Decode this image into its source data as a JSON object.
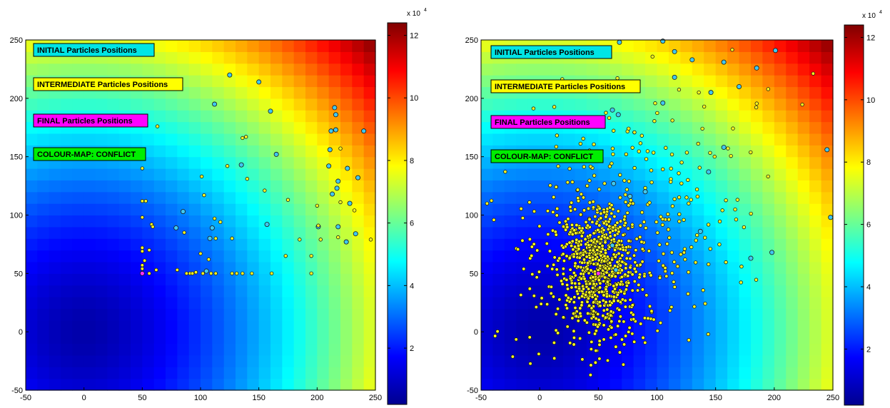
{
  "chart_data": [
    {
      "type": "scatter",
      "background": "heatmap",
      "xlim": [
        -50,
        250
      ],
      "ylim": [
        -50,
        250
      ],
      "xticks": [
        "-50",
        "0",
        "50",
        "100",
        "150",
        "200",
        "250"
      ],
      "yticks": [
        "-50",
        "0",
        "50",
        "100",
        "150",
        "200",
        "250"
      ],
      "legend_boxes": [
        {
          "text": "INITIAL Particles Positions",
          "bg": "#00e5e5"
        },
        {
          "text": "INTERMEDIATE Particles Positions",
          "bg": "#ffff00"
        },
        {
          "text": "FINAL Particles Positions",
          "bg": "#ff00ff"
        },
        {
          "text": "COLOUR-MAP: CONFLICT",
          "bg": "#00ee00"
        }
      ],
      "colorbar": {
        "multiplier": "x 10",
        "exponent": "4",
        "ticks": [
          "2",
          "4",
          "6",
          "8",
          "10",
          "12"
        ],
        "range": [
          0.2,
          12.4
        ]
      },
      "series": [
        {
          "role": "initial",
          "color": "#3fc7ef",
          "points": [
            [
              125,
              220
            ],
            [
              150,
              214
            ],
            [
              112,
              195
            ],
            [
              160,
              189
            ],
            [
              215,
              192
            ],
            [
              216,
              186
            ],
            [
              212,
              172
            ],
            [
              216,
              173
            ],
            [
              240,
              172
            ],
            [
              211,
              156
            ],
            [
              210,
              142
            ],
            [
              226,
              140
            ],
            [
              165,
              152
            ],
            [
              135,
              143
            ],
            [
              235,
              132
            ],
            [
              218,
              129
            ],
            [
              217,
              123
            ],
            [
              213,
              118
            ],
            [
              228,
              110
            ],
            [
              85,
              103
            ],
            [
              157,
              92
            ],
            [
              110,
              89
            ],
            [
              79,
              89
            ],
            [
              201,
              90
            ],
            [
              233,
              84
            ],
            [
              218,
              90
            ],
            [
              225,
              77
            ],
            [
              108,
              80
            ],
            [
              105,
              52
            ]
          ]
        },
        {
          "role": "intermediate",
          "color": "#ffff20",
          "points": [
            [
              139,
              167
            ],
            [
              136,
              166
            ],
            [
              220,
              157
            ],
            [
              123,
              142
            ],
            [
              63,
              176
            ],
            [
              140,
              131
            ],
            [
              50,
              140
            ],
            [
              101,
              133
            ],
            [
              103,
              117
            ],
            [
              155,
              121
            ],
            [
              175,
              113
            ],
            [
              50,
              112
            ],
            [
              53,
              112
            ],
            [
              220,
              111
            ],
            [
              200,
              108
            ],
            [
              232,
              104
            ],
            [
              112,
              97
            ],
            [
              117,
              94
            ],
            [
              50,
              98
            ],
            [
              58,
              92
            ],
            [
              59,
              90
            ],
            [
              201,
              91
            ],
            [
              86,
              85
            ],
            [
              113,
              80
            ],
            [
              127,
              80
            ],
            [
              218,
              81
            ],
            [
              246,
              79
            ],
            [
              185,
              79
            ],
            [
              203,
              79
            ],
            [
              56,
              70
            ],
            [
              50,
              72
            ],
            [
              50,
              69
            ],
            [
              100,
              67
            ],
            [
              107,
              62
            ],
            [
              173,
              65
            ],
            [
              195,
              65
            ],
            [
              52,
              61
            ],
            [
              62,
              53
            ],
            [
              80,
              53
            ],
            [
              88,
              50
            ],
            [
              91,
              50
            ],
            [
              93,
              50
            ],
            [
              96,
              51
            ],
            [
              102,
              50
            ],
            [
              109,
              50
            ],
            [
              113,
              50
            ],
            [
              127,
              50
            ],
            [
              131,
              50
            ],
            [
              136,
              50
            ],
            [
              144,
              50
            ],
            [
              161,
              50
            ],
            [
              195,
              50
            ],
            [
              56,
              50
            ],
            [
              50,
              57
            ],
            [
              50,
              54
            ]
          ]
        },
        {
          "role": "final",
          "color": "#ff30ff",
          "points": [
            [
              50,
              50
            ]
          ]
        }
      ]
    },
    {
      "type": "scatter",
      "background": "heatmap",
      "xlim": [
        -50,
        250
      ],
      "ylim": [
        -50,
        250
      ],
      "xticks": [
        "-50",
        "0",
        "50",
        "100",
        "150",
        "200",
        "250"
      ],
      "yticks": [
        "-50",
        "0",
        "50",
        "100",
        "150",
        "200",
        "250"
      ],
      "legend_boxes": [
        {
          "text": "INITIAL Particles Positions",
          "bg": "#00e5e5"
        },
        {
          "text": "INTERMEDIATE Particles Positions",
          "bg": "#ffff00"
        },
        {
          "text": "FINAL Particles Positions",
          "bg": "#ff00ff"
        },
        {
          "text": "COLOUR-MAP: CONFLICT",
          "bg": "#00ee00"
        }
      ],
      "colorbar": {
        "multiplier": "x 10",
        "exponent": "4",
        "ticks": [
          "2",
          "4",
          "6",
          "8",
          "10",
          "12"
        ],
        "range": [
          0.2,
          12.4
        ]
      },
      "dense_intermediate_cloud": {
        "center": [
          50,
          55
        ],
        "count": 1100,
        "seed": 7
      },
      "series": [
        {
          "role": "initial",
          "color": "#3fc7ef",
          "points": [
            [
              68,
              248
            ],
            [
              105,
              249
            ],
            [
              115,
              240
            ],
            [
              130,
              233
            ],
            [
              157,
              231
            ],
            [
              185,
              226
            ],
            [
              201,
              241
            ],
            [
              115,
              218
            ],
            [
              170,
              210
            ],
            [
              146,
              205
            ],
            [
              105,
              196
            ],
            [
              62,
              190
            ],
            [
              67,
              186
            ],
            [
              157,
              158
            ],
            [
              245,
              156
            ],
            [
              47,
              180
            ],
            [
              144,
              137
            ],
            [
              137,
              86
            ],
            [
              77,
              116
            ],
            [
              248,
              98
            ],
            [
              62,
              74
            ],
            [
              180,
              63
            ],
            [
              198,
              68
            ],
            [
              65,
              53
            ],
            [
              63,
              127
            ],
            [
              90,
              120
            ]
          ]
        },
        {
          "role": "final",
          "color": "#ff30ff",
          "points": [
            [
              50,
              50
            ]
          ]
        }
      ]
    }
  ]
}
